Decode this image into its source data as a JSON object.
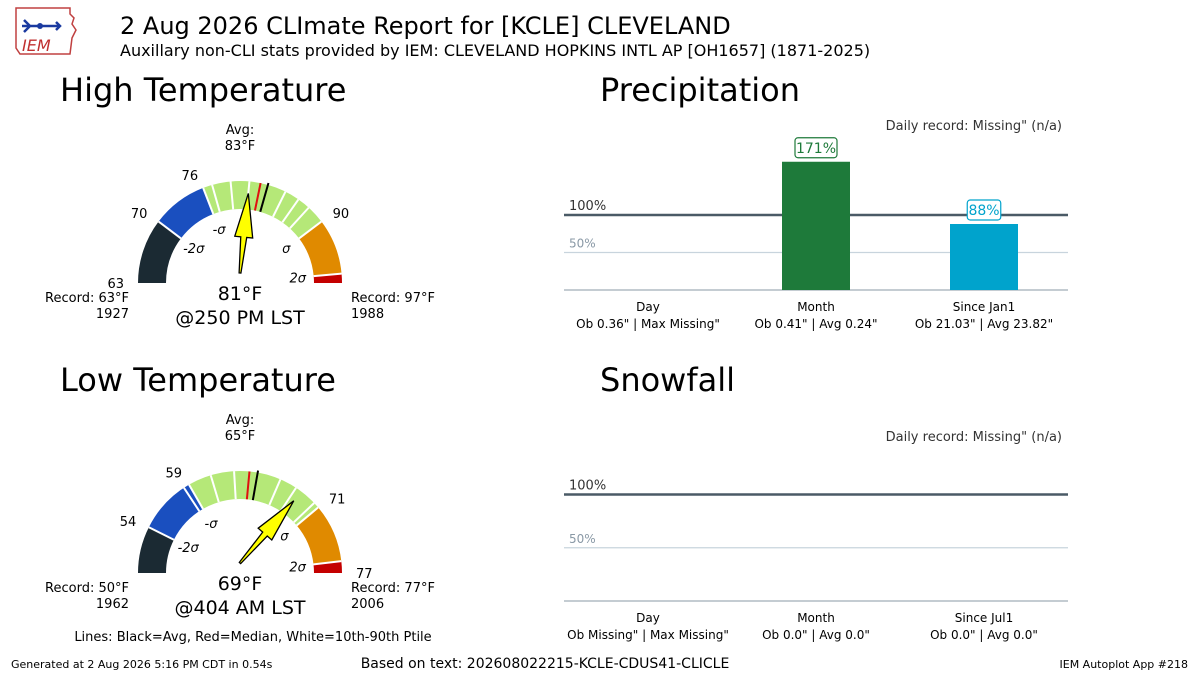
{
  "header": {
    "logo_text": "IEM",
    "title": "2 Aug 2026 CLImate Report for [KCLE] CLEVELAND",
    "subtitle": "Auxillary non-CLI stats provided by IEM: CLEVELAND HOPKINS INTL AP [OH1657] (1871-2025)"
  },
  "footer": {
    "generated": "Generated at 2 Aug 2026 5:16 PM CDT in 0.54s",
    "based_on": "Based on text: 202608022215-KCLE-CDUS41-CLICLE",
    "app": "IEM Autoplot App #218"
  },
  "legend_note": "Lines: Black=Avg, Red=Median, White=10th-90th Ptile",
  "colors": {
    "minus3": "#1b2a33",
    "minus2": "#1a4fbf",
    "normal": "#b5e878",
    "plus2": "#e08a00",
    "plus3": "#c40000",
    "precip_month": "#1e7a3a",
    "precip_since": "#00a3cc",
    "ref_line": "#4a5a66",
    "ref_50": "#c8d4dd",
    "arrow": "#ffff00"
  },
  "chart_data": [
    {
      "type": "gauge",
      "title": "High Temperature",
      "range": [
        63,
        97
      ],
      "tick_values": [
        63,
        70,
        76,
        90
      ],
      "avg_label": "Avg:",
      "avg_value_label": "83°F",
      "avg": 83,
      "median": 82.2,
      "minus2_sigma": 70,
      "minus1_sigma": 76,
      "plus1_sigma": 90,
      "plus2_sigma": 96,
      "percentile_lines": [
        77,
        79,
        81,
        85,
        86.6,
        88
      ],
      "observed": 81,
      "observed_label": "81°F",
      "time_label": "@250 PM LST",
      "record_low_label": "Record: 63°F",
      "record_low_year": "1927",
      "record_high_label": "Record: 97°F",
      "record_high_year": "1988",
      "sigma_labels": [
        "-2σ",
        "-σ",
        "σ",
        "2σ"
      ]
    },
    {
      "type": "gauge",
      "title": "Low Temperature",
      "range": [
        50,
        77
      ],
      "tick_values": [
        54,
        59,
        71,
        77
      ],
      "avg_label": "Avg:",
      "avg_value_label": "65°F",
      "avg": 65,
      "median": 64.3,
      "minus2_sigma": 54,
      "minus1_sigma": 59,
      "plus1_sigma": 71,
      "plus2_sigma": 76,
      "percentile_lines": [
        58.5,
        61,
        63,
        67,
        68.5,
        70.5
      ],
      "observed": 69,
      "observed_label": "69°F",
      "time_label": "@404 AM LST",
      "record_low_label": "Record: 50°F",
      "record_low_year": "1962",
      "record_high_label": "Record: 77°F",
      "record_high_year": "2006",
      "sigma_labels": [
        "-2σ",
        "-σ",
        "σ",
        "2σ"
      ]
    },
    {
      "type": "bar",
      "title": "Precipitation",
      "note": "Daily record: Missing\" (n/a)",
      "ref_labels": [
        "100%",
        "50%"
      ],
      "ylim": [
        0,
        200
      ],
      "categories": [
        "Day",
        "Month",
        "Since Jan1"
      ],
      "details": [
        "Ob 0.36\" | Max Missing\"",
        "Ob 0.41\" | Avg 0.24\"",
        "Ob 21.03\" | Avg 23.82\""
      ],
      "values": [
        null,
        171,
        88
      ],
      "value_labels": [
        "",
        "171%",
        "88%"
      ]
    },
    {
      "type": "bar",
      "title": "Snowfall",
      "note": "Daily record: Missing\" (n/a)",
      "ref_labels": [
        "100%",
        "50%"
      ],
      "ylim": [
        0,
        170
      ],
      "categories": [
        "Day",
        "Month",
        "Since Jul1"
      ],
      "details": [
        "Ob Missing\" | Max Missing\"",
        "Ob 0.0\" | Avg 0.0\"",
        "Ob 0.0\" | Avg 0.0\""
      ],
      "values": [
        null,
        null,
        null
      ],
      "value_labels": [
        "",
        "",
        ""
      ]
    }
  ]
}
